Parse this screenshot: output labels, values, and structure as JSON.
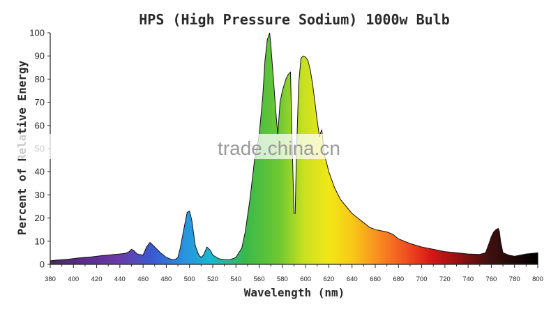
{
  "chart_data": {
    "type": "area",
    "title": "HPS (High Pressure Sodium) 1000w Bulb",
    "xlabel": "Wavelength (nm)",
    "ylabel": "Percent of Relative Energy",
    "xlim": [
      380,
      800
    ],
    "ylim": [
      0,
      100
    ],
    "x_ticks": [
      380,
      400,
      420,
      440,
      460,
      480,
      500,
      520,
      540,
      560,
      580,
      600,
      620,
      640,
      660,
      680,
      700,
      720,
      740,
      760,
      780,
      800
    ],
    "y_ticks": [
      0,
      10,
      20,
      30,
      40,
      50,
      60,
      70,
      80,
      90,
      100
    ],
    "grid": false,
    "legend": "none",
    "fill": "visible-spectrum gradient",
    "watermark": "trade.china.cn",
    "series": [
      {
        "x": [
          380,
          385,
          390,
          395,
          400,
          405,
          410,
          415,
          420,
          425,
          430,
          435,
          440,
          445,
          448,
          450,
          452,
          455,
          460,
          463,
          466,
          470,
          475,
          480,
          485,
          488,
          490,
          492,
          495,
          497,
          498,
          500,
          502,
          505,
          508,
          510,
          512,
          515,
          518,
          520,
          525,
          530,
          535,
          540,
          545,
          548,
          552,
          556,
          560,
          563,
          565,
          567,
          569,
          570,
          572,
          574,
          576,
          578,
          580,
          583,
          585,
          587,
          588,
          590,
          591,
          592,
          594,
          596,
          598,
          600,
          602,
          604,
          606,
          608,
          610,
          612,
          613,
          614,
          616,
          620,
          625,
          630,
          635,
          640,
          645,
          650,
          655,
          660,
          665,
          670,
          675,
          680,
          690,
          700,
          710,
          720,
          730,
          740,
          750,
          755,
          758,
          760,
          762,
          764,
          766,
          767,
          768,
          770,
          775,
          780,
          790,
          800
        ],
        "y": [
          1.5,
          1.8,
          2,
          2.2,
          2.5,
          2.8,
          3,
          3.2,
          3.5,
          3.8,
          4,
          4.3,
          4.5,
          4.8,
          5.5,
          6.5,
          6,
          4.5,
          4,
          7.5,
          9.5,
          7.5,
          5,
          3,
          2,
          2.2,
          3,
          7,
          15,
          20,
          22.5,
          23,
          19,
          8,
          4,
          3,
          4,
          7.5,
          6,
          4,
          2.5,
          2,
          2,
          3,
          7,
          14,
          28,
          45,
          56,
          72,
          88,
          97,
          100,
          95,
          82,
          68,
          56,
          70,
          75,
          80,
          82,
          83,
          60,
          22,
          22,
          45,
          78,
          89,
          90,
          89.5,
          88,
          84,
          78,
          70,
          62,
          55,
          57,
          58,
          48,
          40,
          33,
          28,
          25,
          22,
          20,
          18,
          16,
          15,
          14.5,
          14,
          13,
          11,
          9,
          7.5,
          6.5,
          5.5,
          5,
          4.5,
          4.3,
          5,
          9,
          12,
          14,
          15,
          15.5,
          14,
          10,
          5,
          4,
          3.5,
          4.5,
          5
        ]
      }
    ]
  }
}
